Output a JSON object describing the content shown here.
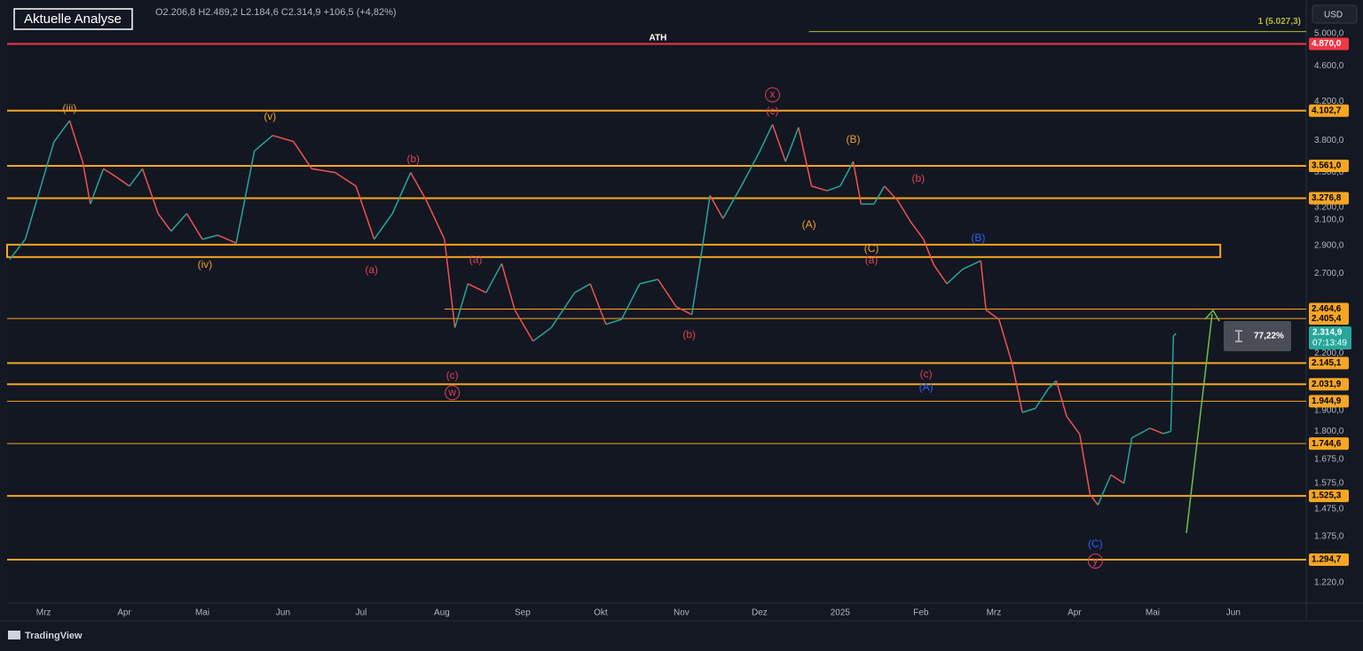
{
  "header": {
    "badge": "Aktuelle Analyse",
    "ohlc": "O2.206,8 H2.489,2 L2.184,6 C2.314,9 +106,5 (+4,82%)",
    "currency": "USD",
    "brand": "TradingView"
  },
  "chart_data": {
    "type": "line",
    "log_scale": true,
    "up_color": "#26a69a",
    "down_color": "#ef5350",
    "x": [
      -13,
      -7,
      -1,
      4,
      10,
      15,
      18,
      23,
      28,
      33,
      38,
      44,
      49,
      55,
      61,
      67,
      74,
      81,
      88,
      96,
      103,
      112,
      120,
      127,
      134,
      141,
      147,
      154,
      158,
      163,
      170,
      176,
      181,
      188,
      195,
      204,
      210,
      216,
      222,
      229,
      236,
      243,
      249,
      253,
      256,
      261,
      268,
      275,
      280,
      285,
      290,
      295,
      301,
      306,
      311,
      314,
      319,
      323,
      328,
      333,
      338,
      342,
      347,
      353,
      360,
      362,
      367,
      372,
      376,
      381,
      386,
      389,
      393,
      398,
      402,
      405,
      410,
      415,
      418,
      425,
      430,
      433,
      434,
      435
    ],
    "values": [
      2800,
      2949,
      3380,
      3786,
      4000,
      3600,
      3228,
      3534,
      3460,
      3380,
      3534,
      3150,
      3010,
      3150,
      2949,
      2980,
      2920,
      3700,
      3850,
      3790,
      3534,
      3500,
      3380,
      2949,
      3150,
      3500,
      3260,
      2949,
      2349,
      2630,
      2571,
      2770,
      2459,
      2270,
      2349,
      2571,
      2630,
      2370,
      2400,
      2630,
      2660,
      2480,
      2430,
      2880,
      3300,
      3110,
      3380,
      3690,
      3960,
      3600,
      3930,
      3380,
      3340,
      3380,
      3600,
      3228,
      3228,
      3380,
      3260,
      3086,
      2949,
      2760,
      2630,
      2730,
      2790,
      2459,
      2400,
      2145,
      1890,
      1910,
      2010,
      2050,
      1871,
      1787,
      1530,
      1490,
      1610,
      1575,
      1770,
      1815,
      1790,
      1800,
      2300,
      2315
    ],
    "xlim": [
      -14,
      485
    ],
    "ylim": [
      1158,
      5452
    ],
    "xticks": [
      {
        "value": 0,
        "label": "Mrz"
      },
      {
        "value": 31,
        "label": "Apr"
      },
      {
        "value": 61,
        "label": "Mai"
      },
      {
        "value": 92,
        "label": "Jun"
      },
      {
        "value": 122,
        "label": "Jul"
      },
      {
        "value": 153,
        "label": "Aug"
      },
      {
        "value": 184,
        "label": "Sep"
      },
      {
        "value": 214,
        "label": "Okt"
      },
      {
        "value": 245,
        "label": "Nov"
      },
      {
        "value": 275,
        "label": "Dez"
      },
      {
        "value": 306,
        "label": "2025"
      },
      {
        "value": 337,
        "label": "Feb"
      },
      {
        "value": 365,
        "label": "Mrz"
      },
      {
        "value": 396,
        "label": "Apr"
      },
      {
        "value": 426,
        "label": "Mai"
      },
      {
        "value": 457,
        "label": "Jun"
      }
    ],
    "yticks": [
      {
        "value": 5000,
        "label": "5.000,0"
      },
      {
        "value": 4600,
        "label": "4.600,0"
      },
      {
        "value": 4200,
        "label": "4.200,0"
      },
      {
        "value": 3800,
        "label": "3.800,0"
      },
      {
        "value": 3500,
        "label": "3.500,0"
      },
      {
        "value": 3200,
        "label": "3.200,0"
      },
      {
        "value": 3100,
        "label": "3.100,0"
      },
      {
        "value": 2900,
        "label": "2.900,0"
      },
      {
        "value": 2700,
        "label": "2.700,0"
      },
      {
        "value": 2200,
        "label": "2.200,0"
      },
      {
        "value": 1900,
        "label": "1.900,0"
      },
      {
        "value": 1800,
        "label": "1.800,0"
      },
      {
        "value": 1675,
        "label": "1.675,0"
      },
      {
        "value": 1575,
        "label": "1.575,0"
      },
      {
        "value": 1475,
        "label": "1.475,0"
      },
      {
        "value": 1375,
        "label": "1.375,0"
      },
      {
        "value": 1220,
        "label": "1.220,0"
      }
    ],
    "levels": [
      {
        "value": 4870,
        "label": "4.870,0",
        "color": "#f23645",
        "width": 2,
        "start": null
      },
      {
        "value": 4102.7,
        "label": "4.102,7",
        "color": "#f5a623",
        "width": 2,
        "start": null
      },
      {
        "value": 3561,
        "label": "3.561,0",
        "color": "#f5a623",
        "width": 2,
        "start": null
      },
      {
        "value": 3276.8,
        "label": "3.276,8",
        "color": "#f5a623",
        "width": 2,
        "start": null
      },
      {
        "value": 2464.6,
        "label": "2.464,6",
        "color": "#f5a623",
        "width": 1,
        "start": 154
      },
      {
        "value": 2405.4,
        "label": "2.405,4",
        "color": "#f5a623",
        "width": 1,
        "start": null
      },
      {
        "value": 2145.1,
        "label": "2.145,1",
        "color": "#f5a623",
        "width": 2,
        "start": null
      },
      {
        "value": 2031.9,
        "label": "2.031,9",
        "color": "#f5a623",
        "width": 2,
        "start": null
      },
      {
        "value": 1944.9,
        "label": "1.944,9",
        "color": "#f5a623",
        "width": 1,
        "start": null
      },
      {
        "value": 1744.6,
        "label": "1.744,6",
        "color": "#f5a623",
        "width": 1,
        "start": null
      },
      {
        "value": 1525.3,
        "label": "1.525,3",
        "color": "#f5a623",
        "width": 2,
        "start": null
      },
      {
        "value": 1294.7,
        "label": "1.294,7",
        "color": "#f5a623",
        "width": 2,
        "start": null
      }
    ],
    "zone": {
      "low": 2817,
      "high": 2908,
      "end": 452,
      "color": "#f5a623"
    },
    "fib": {
      "value": 5027.3,
      "label": "1 (5.027,3)",
      "start": 294,
      "color": "#b5b83a"
    },
    "price_tag": {
      "value": 2314.9,
      "label": "2.314,9",
      "countdown": "07:13:49",
      "color": "#26a69a"
    },
    "measure": {
      "label": "77,22%"
    },
    "annotations": [
      {
        "text": "ATH",
        "x": 236,
        "y": 4943,
        "color": "#ffffff",
        "circled": false
      },
      {
        "text": "(iii)",
        "x": 10,
        "y": 4120,
        "color": "#f0a030",
        "circled": false
      },
      {
        "text": "(v)",
        "x": 87,
        "y": 4036,
        "color": "#f0a030",
        "circled": false
      },
      {
        "text": "(iv)",
        "x": 62,
        "y": 2759,
        "color": "#f0a030",
        "circled": false
      },
      {
        "text": "(b)",
        "x": 142,
        "y": 3618,
        "color": "#e0405a",
        "circled": false
      },
      {
        "text": "(a)",
        "x": 126,
        "y": 2722,
        "color": "#e0405a",
        "circled": false
      },
      {
        "text": "(a)",
        "x": 166,
        "y": 2796,
        "color": "#e0405a",
        "circled": false
      },
      {
        "text": "(c)",
        "x": 157,
        "y": 2076,
        "color": "#e0405a",
        "circled": false
      },
      {
        "text": "w",
        "x": 157,
        "y": 1988,
        "color": "#e0405a",
        "circled": true
      },
      {
        "text": "(b)",
        "x": 248,
        "y": 2305,
        "color": "#e0405a",
        "circled": false
      },
      {
        "text": "x",
        "x": 280,
        "y": 4274,
        "color": "#e0405a",
        "circled": true
      },
      {
        "text": "(c)",
        "x": 280,
        "y": 4091,
        "color": "#e0405a",
        "circled": false
      },
      {
        "text": "(B)",
        "x": 311,
        "y": 3805,
        "color": "#f0a030",
        "circled": false
      },
      {
        "text": "(A)",
        "x": 294,
        "y": 3057,
        "color": "#f0a030",
        "circled": false
      },
      {
        "text": "(C)",
        "x": 318,
        "y": 2875,
        "color": "#f0a030",
        "circled": false
      },
      {
        "text": "(a)",
        "x": 318,
        "y": 2791,
        "color": "#e0405a",
        "circled": false
      },
      {
        "text": "(b)",
        "x": 336,
        "y": 3441,
        "color": "#e0405a",
        "circled": false
      },
      {
        "text": "(B)",
        "x": 359,
        "y": 2955,
        "color": "#2962ff",
        "circled": false
      },
      {
        "text": "(c)",
        "x": 339,
        "y": 2084,
        "color": "#e0405a",
        "circled": false
      },
      {
        "text": "(A)",
        "x": 339,
        "y": 2014,
        "color": "#2962ff",
        "circled": false
      },
      {
        "text": "(C)",
        "x": 404,
        "y": 1346,
        "color": "#2962ff",
        "circled": false
      },
      {
        "text": "y",
        "x": 404,
        "y": 1290,
        "color": "#e0405a",
        "circled": true
      }
    ]
  }
}
